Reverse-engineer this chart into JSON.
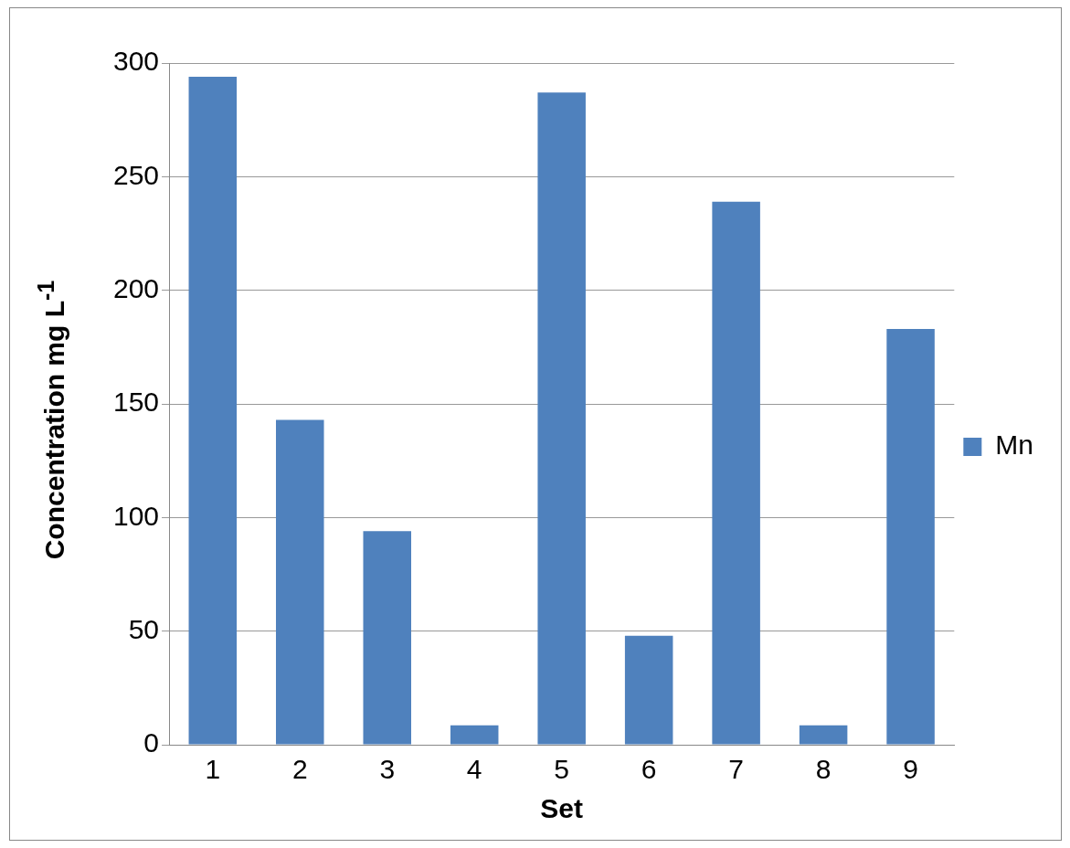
{
  "chart_data": {
    "type": "bar",
    "xlabel": "Set",
    "ylabel": "Concentration mg L$^{-1}$",
    "categories": [
      "1",
      "2",
      "3",
      "4",
      "5",
      "6",
      "7",
      "8",
      "9"
    ],
    "series": [
      {
        "name": "Mn",
        "color": "#4f81bd",
        "values": [
          294,
          143,
          94,
          8.5,
          287,
          48,
          239,
          8.5,
          183
        ]
      }
    ],
    "ylim": [
      0,
      300
    ],
    "yticks": [
      0,
      50,
      100,
      150,
      200,
      250,
      300
    ],
    "grid": "y",
    "legend": "right"
  }
}
